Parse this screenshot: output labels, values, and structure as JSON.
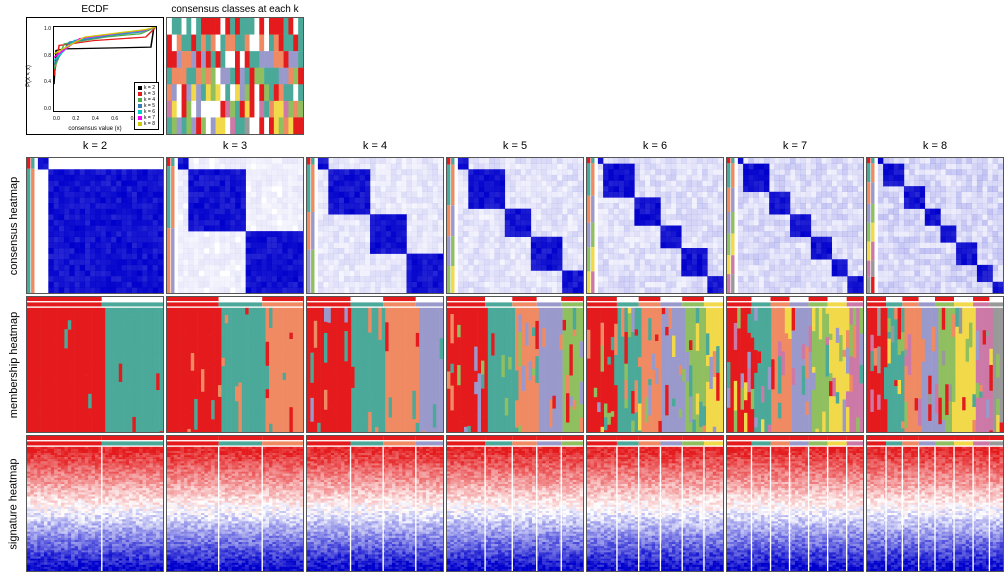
{
  "titles": {
    "ecdf": "ECDF",
    "consensus_classes": "consensus classes at each k",
    "ecdf_ylabel": "P(X < x)",
    "ecdf_xlabel": "consensus value (x)"
  },
  "k_values": [
    "k = 2",
    "k = 3",
    "k = 4",
    "k = 5",
    "k = 6",
    "k = 7",
    "k = 8"
  ],
  "row_labels": [
    "consensus heatmap",
    "membership heatmap",
    "signature heatmap"
  ],
  "ecdf": {
    "yticks": [
      "0.0",
      "0.4",
      "0.8",
      "1.0"
    ],
    "xticks": [
      "0.0",
      "0.2",
      "0.4",
      "0.6",
      "0.8",
      "1.0"
    ],
    "legend": [
      {
        "label": "k = 2",
        "color": "#000000"
      },
      {
        "label": "k = 3",
        "color": "#e41a1c"
      },
      {
        "label": "k = 4",
        "color": "#4daf4a"
      },
      {
        "label": "k = 5",
        "color": "#377eb8"
      },
      {
        "label": "k = 6",
        "color": "#00cccc"
      },
      {
        "label": "k = 7",
        "color": "#ff00ff"
      },
      {
        "label": "k = 8",
        "color": "#cccc00"
      }
    ],
    "curves": [
      {
        "color": "#000000",
        "pts": [
          [
            0,
            0.32
          ],
          [
            0.02,
            0.72
          ],
          [
            0.1,
            0.74
          ],
          [
            0.95,
            0.76
          ],
          [
            0.98,
            1
          ],
          [
            1,
            1
          ]
        ]
      },
      {
        "color": "#e41a1c",
        "pts": [
          [
            0,
            0.42
          ],
          [
            0.05,
            0.78
          ],
          [
            0.4,
            0.84
          ],
          [
            0.9,
            0.88
          ],
          [
            1,
            1
          ]
        ]
      },
      {
        "color": "#4daf4a",
        "pts": [
          [
            0,
            0.5
          ],
          [
            0.1,
            0.8
          ],
          [
            0.5,
            0.88
          ],
          [
            0.85,
            0.92
          ],
          [
            1,
            1
          ]
        ]
      },
      {
        "color": "#377eb8",
        "pts": [
          [
            0,
            0.56
          ],
          [
            0.15,
            0.82
          ],
          [
            0.55,
            0.9
          ],
          [
            0.85,
            0.94
          ],
          [
            1,
            1
          ]
        ]
      },
      {
        "color": "#00cccc",
        "pts": [
          [
            0,
            0.6
          ],
          [
            0.2,
            0.84
          ],
          [
            0.6,
            0.92
          ],
          [
            0.85,
            0.95
          ],
          [
            1,
            1
          ]
        ]
      },
      {
        "color": "#ff00ff",
        "pts": [
          [
            0,
            0.64
          ],
          [
            0.25,
            0.86
          ],
          [
            0.65,
            0.93
          ],
          [
            0.88,
            0.96
          ],
          [
            1,
            1
          ]
        ]
      },
      {
        "color": "#cccc00",
        "pts": [
          [
            0,
            0.68
          ],
          [
            0.3,
            0.88
          ],
          [
            0.7,
            0.94
          ],
          [
            0.9,
            0.97
          ],
          [
            1,
            1
          ]
        ]
      }
    ]
  },
  "palette": {
    "cluster": [
      "#e41a1c",
      "#4aa999",
      "#ef8a62",
      "#9999cc",
      "#8fbf5f",
      "#f2d94a",
      "#cc79a7",
      "#999999"
    ],
    "consensus_low": "#ffffff",
    "consensus_high": "#0000cc",
    "sig_low": "#0000cc",
    "sig_mid": "#ffffff",
    "sig_high": "#e41a1c"
  },
  "consensus_classes_stripes": {
    "cols": 28,
    "rows_k": [
      2,
      3,
      4,
      5,
      6,
      7,
      8
    ]
  },
  "consensus_heatmaps": [
    {
      "k": 2,
      "blocks": [
        0.08,
        1.0
      ],
      "off": 0.02
    },
    {
      "k": 3,
      "blocks": [
        0.06,
        0.52,
        1.0
      ],
      "off": 0.08
    },
    {
      "k": 4,
      "blocks": [
        0.05,
        0.4,
        0.68,
        1.0
      ],
      "off": 0.12
    },
    {
      "k": 5,
      "blocks": [
        0.05,
        0.35,
        0.58,
        0.8,
        1.0
      ],
      "off": 0.14
    },
    {
      "k": 6,
      "blocks": [
        0.04,
        0.28,
        0.48,
        0.66,
        0.84,
        1.0
      ],
      "off": 0.16
    },
    {
      "k": 7,
      "blocks": [
        0.04,
        0.22,
        0.4,
        0.56,
        0.72,
        0.86,
        1.0
      ],
      "off": 0.18
    },
    {
      "k": 8,
      "blocks": [
        0.04,
        0.18,
        0.34,
        0.48,
        0.62,
        0.76,
        0.88,
        1.0
      ],
      "off": 0.2
    }
  ],
  "membership": [
    {
      "k": 2,
      "seg": [
        0.55,
        1.0
      ]
    },
    {
      "k": 3,
      "seg": [
        0.38,
        0.7,
        1.0
      ]
    },
    {
      "k": 4,
      "seg": [
        0.32,
        0.56,
        0.8,
        1.0
      ]
    },
    {
      "k": 5,
      "seg": [
        0.28,
        0.48,
        0.66,
        0.84,
        1.0
      ]
    },
    {
      "k": 6,
      "seg": [
        0.22,
        0.38,
        0.54,
        0.7,
        0.86,
        1.0
      ]
    },
    {
      "k": 7,
      "seg": [
        0.18,
        0.32,
        0.46,
        0.6,
        0.74,
        0.88,
        1.0
      ]
    },
    {
      "k": 8,
      "seg": [
        0.14,
        0.26,
        0.38,
        0.5,
        0.64,
        0.78,
        0.9,
        1.0
      ]
    }
  ],
  "signature": {
    "rows": 60,
    "cols": 40
  }
}
